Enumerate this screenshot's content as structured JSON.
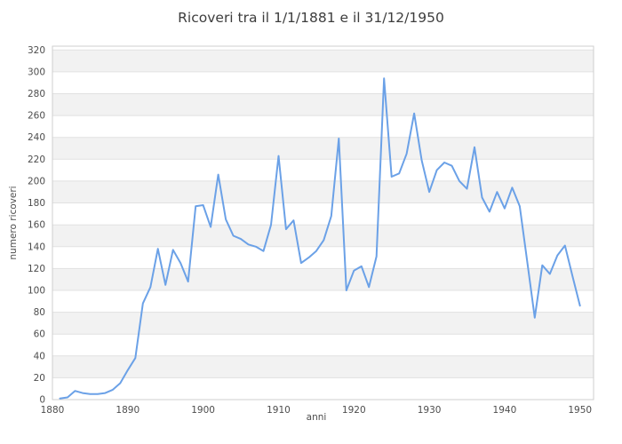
{
  "chart_data": {
    "type": "line",
    "title": "Ricoveri tra il 1/1/1881 e il 31/12/1950",
    "xlabel": "anni",
    "ylabel": "numero ricoveri",
    "xlim": [
      1880,
      1951.8
    ],
    "ylim": [
      0,
      323.5
    ],
    "x_ticks": [
      1880,
      1890,
      1900,
      1910,
      1920,
      1930,
      1940,
      1950
    ],
    "y_ticks": [
      0,
      20,
      40,
      60,
      80,
      100,
      120,
      140,
      160,
      180,
      200,
      220,
      240,
      260,
      280,
      300,
      320
    ],
    "grid": "horizontal-only",
    "legend": "none",
    "colors": {
      "line": "#6ba1e7",
      "band": "#f2f2f2",
      "grid": "#e1e1e1",
      "border": "#cfcfcf",
      "title_text": "#3d3d3d",
      "tick_text": "#4d4d4d"
    },
    "series": [
      {
        "name": "numero ricoveri",
        "color": "#6ba1e7",
        "x": [
          1881,
          1882,
          1883,
          1884,
          1885,
          1886,
          1887,
          1888,
          1889,
          1890,
          1891,
          1892,
          1893,
          1894,
          1895,
          1896,
          1897,
          1898,
          1899,
          1900,
          1901,
          1902,
          1903,
          1904,
          1905,
          1906,
          1907,
          1908,
          1909,
          1910,
          1911,
          1912,
          1913,
          1914,
          1915,
          1916,
          1917,
          1918,
          1919,
          1920,
          1921,
          1922,
          1923,
          1924,
          1925,
          1926,
          1927,
          1928,
          1929,
          1930,
          1931,
          1932,
          1933,
          1934,
          1935,
          1936,
          1937,
          1938,
          1939,
          1940,
          1941,
          1942,
          1943,
          1944,
          1945,
          1946,
          1947,
          1948,
          1949,
          1950
        ],
        "y": [
          1,
          2,
          8,
          6,
          5,
          5,
          6,
          9,
          15,
          27,
          38,
          88,
          103,
          138,
          105,
          137,
          125,
          108,
          177,
          178,
          158,
          206,
          165,
          150,
          147,
          142,
          140,
          136,
          160,
          223,
          156,
          164,
          125,
          130,
          136,
          146,
          168,
          239,
          100,
          118,
          122,
          103,
          131,
          294,
          204,
          207,
          225,
          262,
          219,
          190,
          210,
          217,
          214,
          200,
          193,
          231,
          185,
          172,
          190,
          175,
          194,
          177,
          126,
          75,
          123,
          115,
          132,
          141,
          113,
          86
        ]
      }
    ]
  }
}
